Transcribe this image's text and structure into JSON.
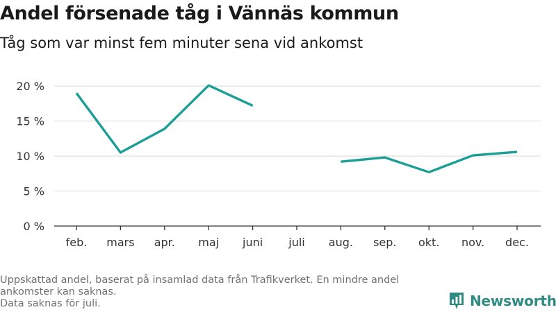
{
  "header": {
    "title": "Andel försenade tåg i Vännäs kommun",
    "subtitle": "Tåg som var minst fem minuter sena vid ankomst"
  },
  "footer": {
    "notes": [
      "Uppskattad andel, baserat på insamlad data från Trafikverket. En mindre andel ankomster kan saknas.",
      "Data saknas för juli."
    ],
    "brand": "Newsworthy"
  },
  "colors": {
    "line": "#1a9e96",
    "grid": "#d9d9d9",
    "axis": "#333333",
    "brand": "#2f8a83"
  },
  "chart_data": {
    "type": "line",
    "title": "Andel försenade tåg i Vännäs kommun",
    "subtitle": "Tåg som var minst fem minuter sena vid ankomst",
    "categories": [
      "feb.",
      "mars",
      "apr.",
      "maj",
      "juni",
      "juli",
      "aug.",
      "sep.",
      "okt.",
      "nov.",
      "dec."
    ],
    "series": [
      {
        "values": [
          19.0,
          10.5,
          13.9,
          20.1,
          17.2,
          null,
          9.2,
          9.8,
          7.7,
          10.1,
          10.6
        ]
      }
    ],
    "y_ticks": [
      0,
      5,
      10,
      15,
      20
    ],
    "y_tick_labels": [
      "0 %",
      "5 %",
      "10 %",
      "15 %",
      "20 %"
    ],
    "ylim": [
      0,
      22
    ],
    "grid": true,
    "legend": "none"
  }
}
